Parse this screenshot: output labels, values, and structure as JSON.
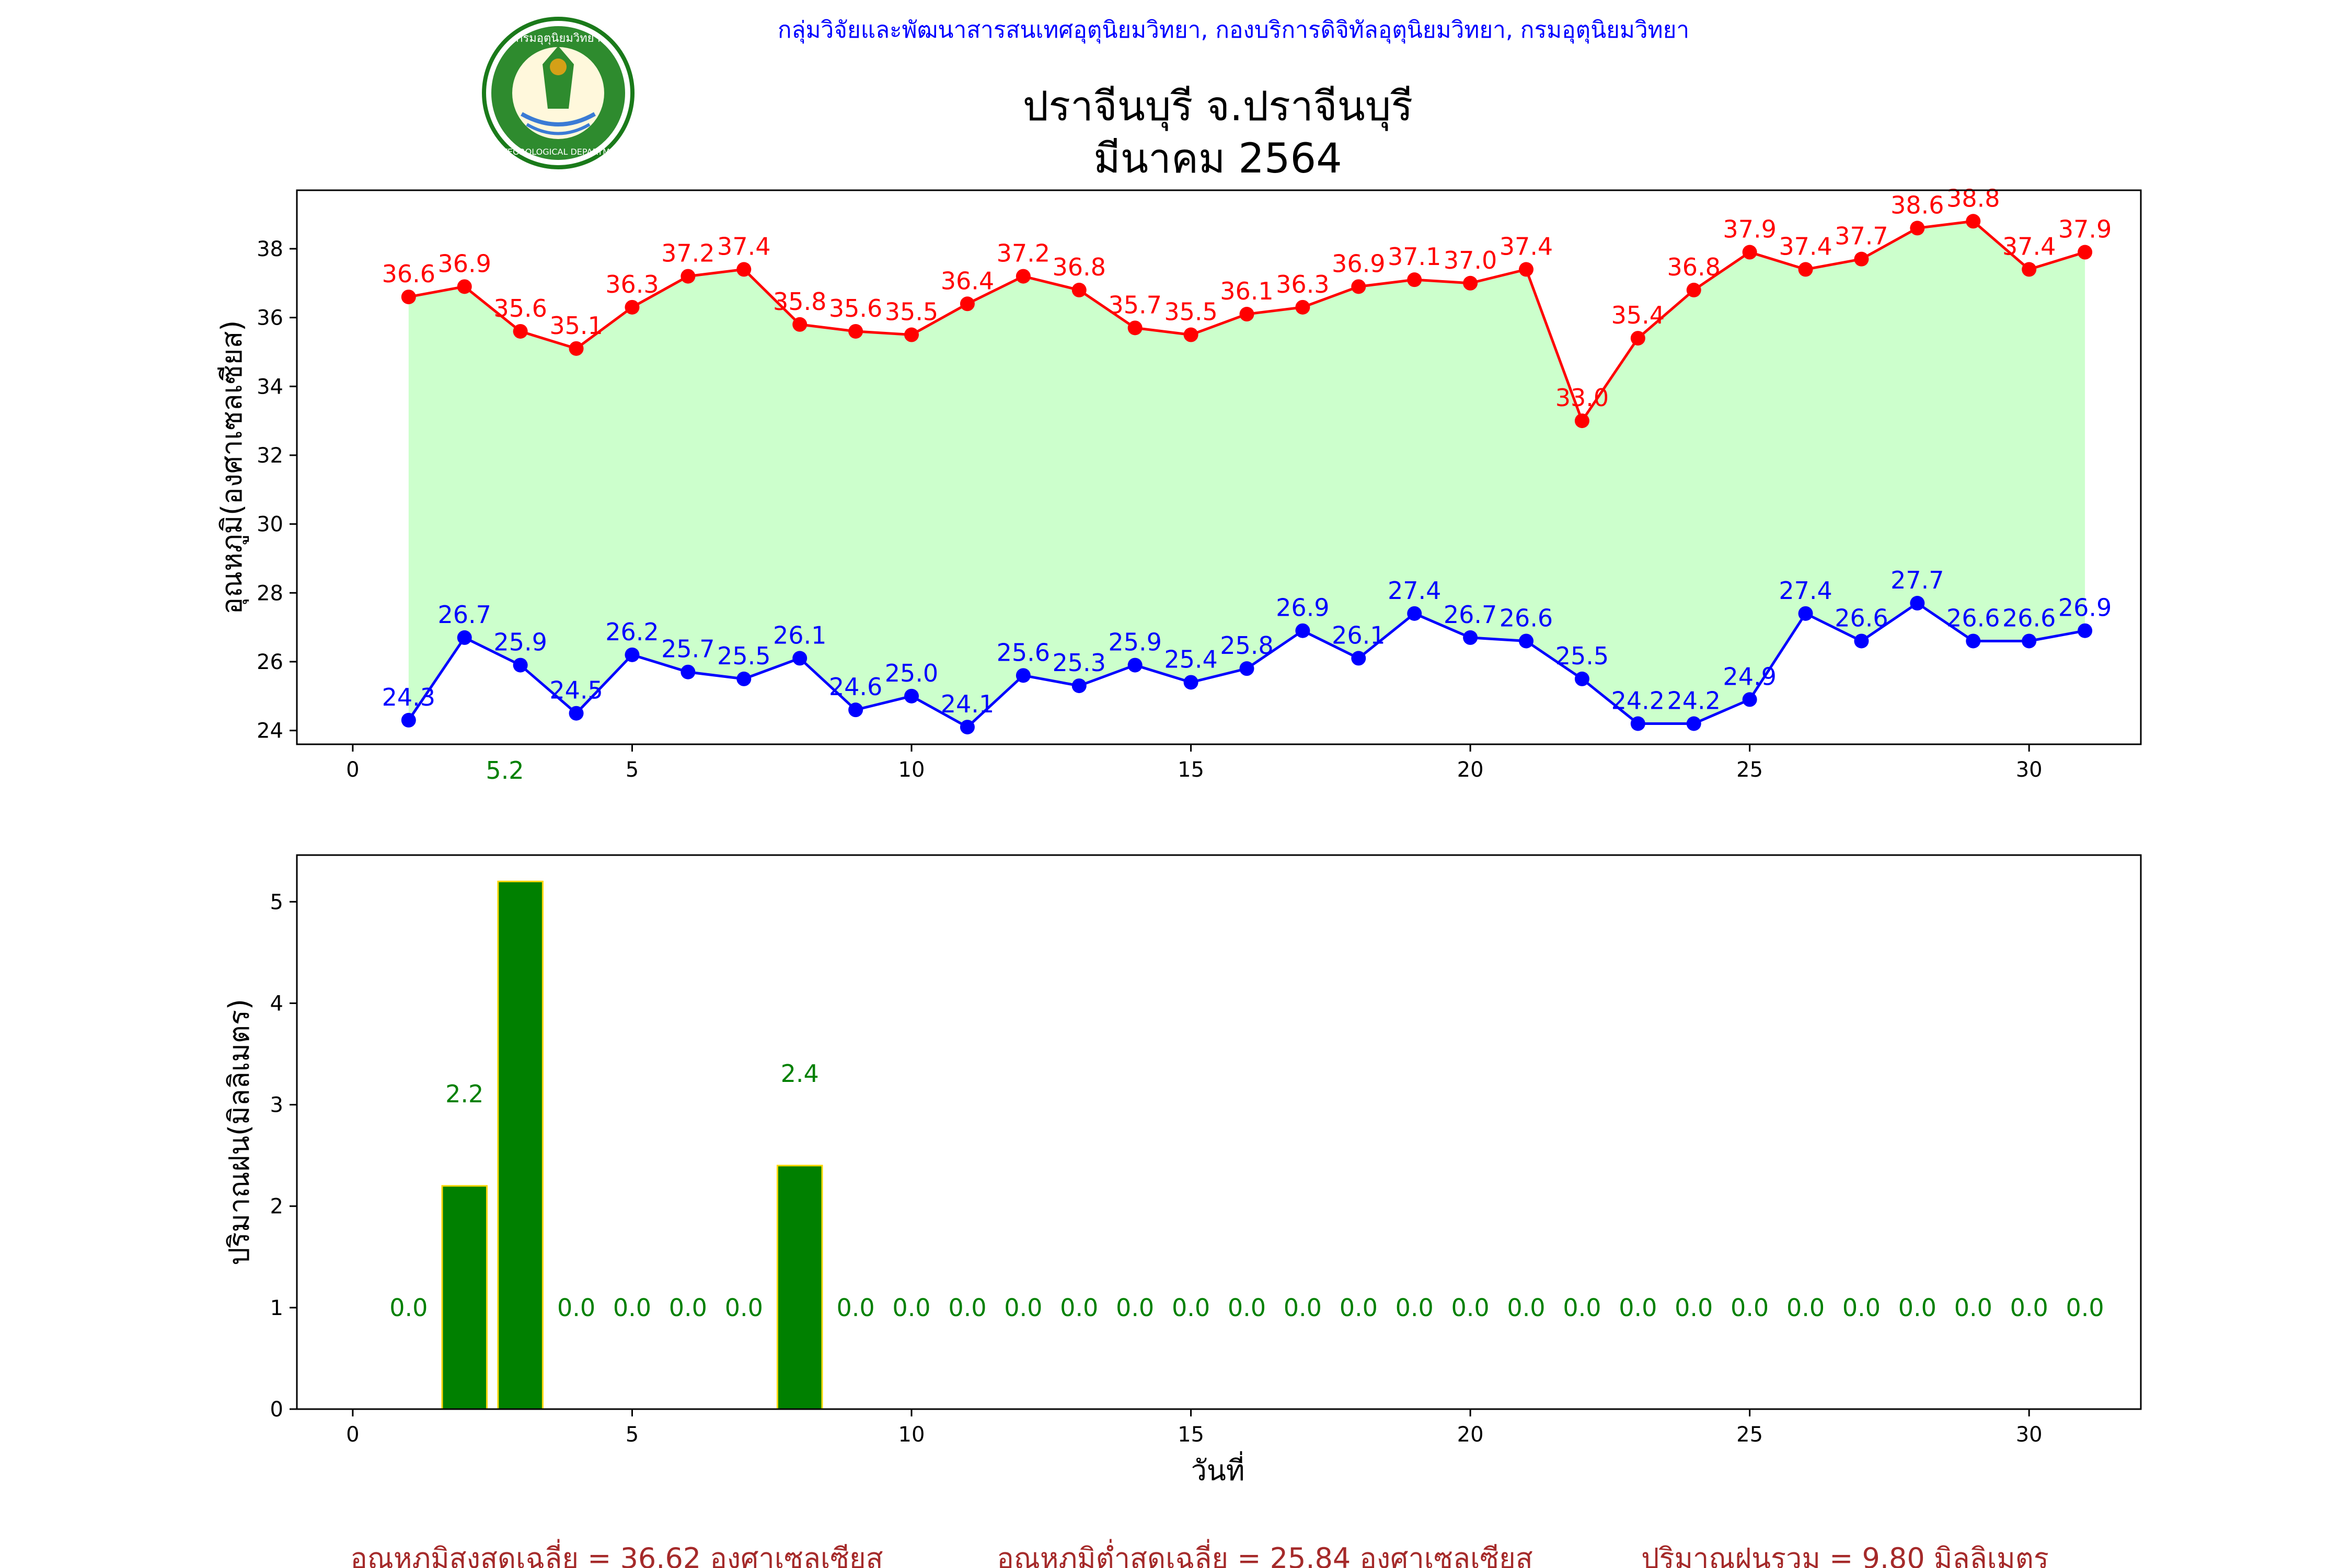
{
  "header": {
    "agency": "กลุ่มวิจัยและพัฒนาสารสนเทศอุตุนิยมวิทยา, กองบริการดิจิทัลอุตุนิยมวิทยา, กรมอุตุนิยมวิทยา",
    "title_line1": "ปราจีนบุรี จ.ปราจีนบุรี",
    "title_line2": "มีนาคม 2564"
  },
  "logo": {
    "label": "Thai Meteorological Department seal",
    "text_top": "กรมอุตุนิยมวิทยา",
    "text_bottom": "METEOROLOGICAL DEPARTMENT"
  },
  "footer": {
    "avg_max": "อุณหภูมิสูงสุดเฉลี่ย = 36.62 องศาเซลเซียส",
    "avg_min": "อุณหภูมิต่ำสุดเฉลี่ย = 25.84 องศาเซลเซียส",
    "rain_total": "ปริมาณฝนรวม = 9.80 มิลลิเมตร"
  },
  "colors": {
    "max_line": "#ff0000",
    "min_line": "#0000ff",
    "fill": "#ccffcc",
    "bar": "#008000",
    "bar_edge": "#ffd700",
    "rain_label": "#008000",
    "header": "#0000ff",
    "footer": "#a52a2a"
  },
  "chart_data": [
    {
      "type": "line",
      "ylabel": "อุณหภูมิ(องศาเซลเซียส)",
      "xlabel": "",
      "xlim": [
        -1,
        32
      ],
      "ylim": [
        23.6,
        39.7
      ],
      "xticks": [
        0,
        5,
        10,
        15,
        20,
        25,
        30
      ],
      "yticks": [
        24,
        26,
        28,
        30,
        32,
        34,
        36,
        38
      ],
      "x": [
        1,
        2,
        3,
        4,
        5,
        6,
        7,
        8,
        9,
        10,
        11,
        12,
        13,
        14,
        15,
        16,
        17,
        18,
        19,
        20,
        21,
        22,
        23,
        24,
        25,
        26,
        27,
        28,
        29,
        30,
        31
      ],
      "series": [
        {
          "values": [
            36.6,
            36.9,
            35.6,
            35.1,
            36.3,
            37.2,
            37.4,
            35.8,
            35.6,
            35.5,
            36.4,
            37.2,
            36.8,
            35.7,
            35.5,
            36.1,
            36.3,
            36.9,
            37.1,
            37.0,
            37.4,
            33.0,
            35.4,
            36.8,
            37.9,
            37.4,
            37.7,
            38.6,
            38.8,
            37.4,
            37.9
          ]
        },
        {
          "values": [
            24.3,
            26.7,
            25.9,
            24.5,
            26.2,
            25.7,
            25.5,
            26.1,
            24.6,
            25.0,
            24.1,
            25.6,
            25.3,
            25.9,
            25.4,
            25.8,
            26.9,
            26.1,
            27.4,
            26.7,
            26.6,
            25.5,
            24.2,
            24.2,
            24.9,
            27.4,
            26.6,
            27.7,
            26.6,
            26.6,
            26.9
          ]
        }
      ],
      "stray_label": "5.2"
    },
    {
      "type": "bar",
      "ylabel": "ปริมาณฝน(มิลลิเมตร)",
      "xlabel": "วันที่",
      "xlim": [
        -1,
        32
      ],
      "ylim": [
        0,
        5.46
      ],
      "xticks": [
        0,
        5,
        10,
        15,
        20,
        25,
        30
      ],
      "yticks": [
        0,
        1,
        2,
        3,
        4,
        5
      ],
      "x": [
        1,
        2,
        3,
        4,
        5,
        6,
        7,
        8,
        9,
        10,
        11,
        12,
        13,
        14,
        15,
        16,
        17,
        18,
        19,
        20,
        21,
        22,
        23,
        24,
        25,
        26,
        27,
        28,
        29,
        30,
        31
      ],
      "values": [
        0.0,
        2.2,
        5.2,
        0.0,
        0.0,
        0.0,
        0.0,
        2.4,
        0.0,
        0.0,
        0.0,
        0.0,
        0.0,
        0.0,
        0.0,
        0.0,
        0.0,
        0.0,
        0.0,
        0.0,
        0.0,
        0.0,
        0.0,
        0.0,
        0.0,
        0.0,
        0.0,
        0.0,
        0.0,
        0.0,
        0.0
      ]
    }
  ]
}
